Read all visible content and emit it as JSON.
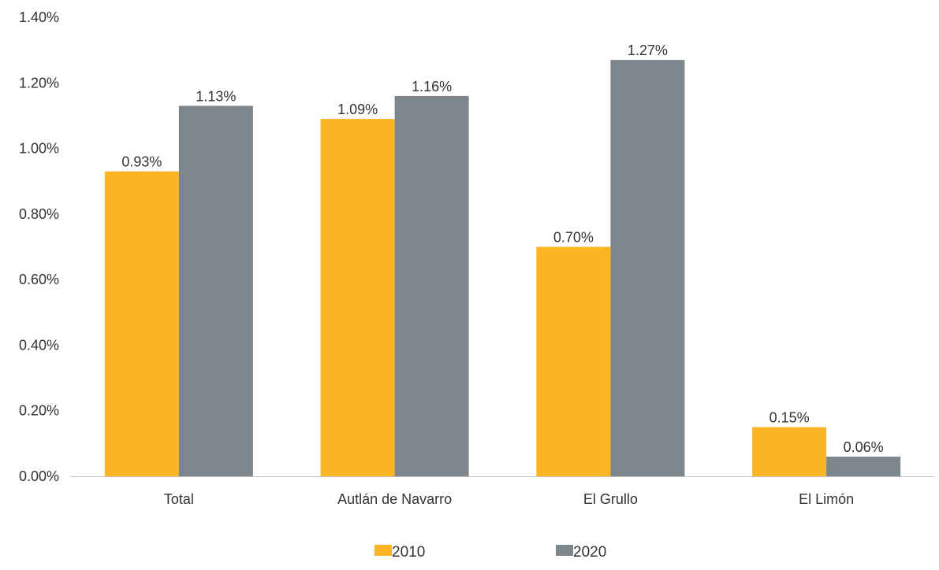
{
  "chart_data": {
    "type": "bar",
    "categories": [
      "Total",
      "Autlán de Navarro",
      "El Grullo",
      "El Limón"
    ],
    "series": [
      {
        "name": "2010",
        "values": [
          0.93,
          1.09,
          0.7,
          0.15
        ],
        "labels": [
          "0.93%",
          "1.09%",
          "0.70%",
          "0.15%"
        ],
        "color": "#F9B522"
      },
      {
        "name": "2020",
        "values": [
          1.13,
          1.16,
          1.27,
          0.06
        ],
        "labels": [
          "1.13%",
          "1.16%",
          "1.27%",
          "0.06%"
        ],
        "color": "#7C868B"
      }
    ],
    "ylim": [
      0,
      1.4
    ],
    "yticks": [
      0,
      0.2,
      0.4,
      0.6,
      0.8,
      1.0,
      1.2,
      1.4
    ],
    "ytick_labels": [
      "0.00%",
      "0.20%",
      "0.40%",
      "0.60%",
      "0.80%",
      "1.00%",
      "1.20%",
      "1.40%"
    ],
    "title": "",
    "xlabel": "",
    "ylabel": "",
    "grid": false,
    "legend_position": "bottom-center",
    "axis_color": "#BFBFBF"
  }
}
